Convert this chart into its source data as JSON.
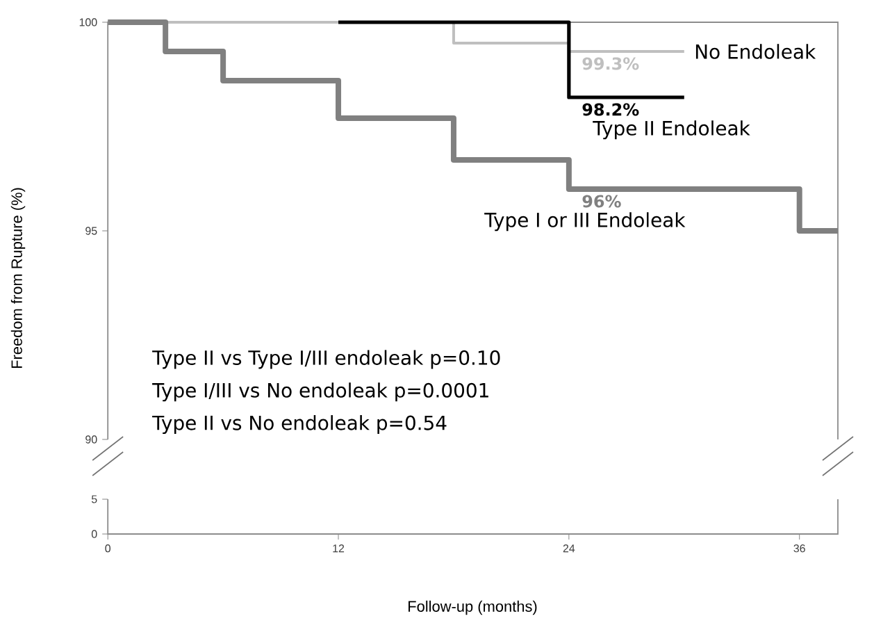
{
  "chart_data": [
    {
      "type": "step",
      "ylabel": "Freedom from Rupture (%)",
      "xlim": [
        0,
        38
      ],
      "ylim": [
        90,
        100
      ],
      "yticks": [
        90,
        95,
        100
      ],
      "tick_labels": "y",
      "series": [
        {
          "name": "No Endoleak",
          "color": "#bfbfbf",
          "x": [
            0,
            18,
            24,
            30
          ],
          "values": [
            100,
            99.5,
            99.3,
            99.3
          ],
          "value_labels": [
            null,
            null,
            "99.3%",
            null
          ]
        },
        {
          "name": "Type II Endoleak",
          "color": "#000000",
          "x": [
            12,
            24,
            30
          ],
          "values": [
            100,
            98.2,
            98.2
          ],
          "value_labels": [
            null,
            "98.2%",
            null
          ]
        },
        {
          "name": "Type I or III Endoleak",
          "color": "#808080",
          "x": [
            0,
            3,
            6,
            12,
            18,
            24,
            36,
            38
          ],
          "values": [
            100,
            99.3,
            98.6,
            97.7,
            96.7,
            96,
            95,
            95
          ],
          "value_labels": [
            null,
            null,
            null,
            null,
            null,
            "96%",
            null,
            null
          ]
        }
      ],
      "annotations": [
        "Type II vs Type I/III endoleak   p=0.10",
        "Type I/III vs No endoleak         p=0.0001",
        "Type II vs No endoleak             p=0.54"
      ]
    },
    {
      "type": "step",
      "xlabel": "Follow-up (months)",
      "xlim": [
        0,
        38
      ],
      "xticks": [
        0,
        12,
        24,
        36
      ],
      "ylim": [
        0,
        5
      ],
      "yticks": [
        0,
        5
      ]
    }
  ]
}
